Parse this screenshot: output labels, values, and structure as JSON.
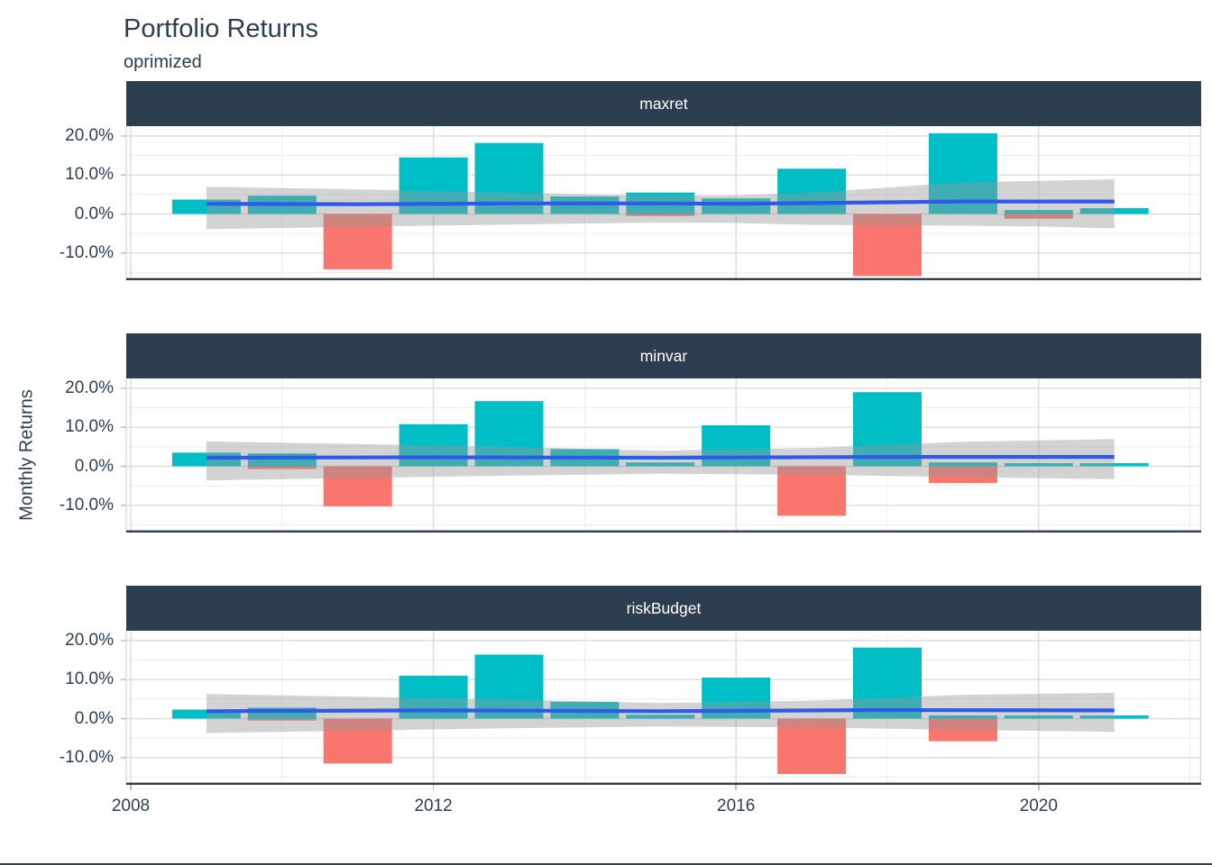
{
  "header": {
    "title": "Portfolio Returns",
    "subtitle": "oprimized"
  },
  "y_axis_title": "Monthly Returns",
  "colors": {
    "positive_bar": "#00BEC6",
    "negative_bar": "#F8766D",
    "mean_line": "#2D5BE8",
    "ribbon": "#969696",
    "ribbon_alpha": 0.42,
    "strip_bg": "#2C3E50",
    "strip_text": "#FFFFFF",
    "text": "#2C3E50",
    "grid_major": "#DCDCDC",
    "grid_minor": "#ECECEC",
    "panel_border": "#D5D5D5",
    "axis_line": "#2C3E50",
    "tick_mark": "#BFBFBF"
  },
  "chart_data": {
    "type": "bar",
    "title": "Portfolio Returns",
    "subtitle": "oprimized",
    "xlabel": "",
    "ylabel": "Monthly Returns",
    "unit": "%",
    "grid": true,
    "legend": "none",
    "xlim": [
      2007.94,
      2022.15
    ],
    "ylim": [
      -17,
      22.5
    ],
    "x_tick_years": [
      2008,
      2012,
      2016,
      2020
    ],
    "x_tick_labels": [
      "2008",
      "2012",
      "2016",
      "2020"
    ],
    "x_minor_years": [
      2010,
      2014,
      2018,
      2022
    ],
    "y_tick_values": [
      20,
      10,
      0,
      -10
    ],
    "y_tick_labels": [
      "20.0%",
      "10.0%",
      "0.0%",
      "-10.0%"
    ],
    "y_minor_values": [
      15,
      5,
      -5,
      -15
    ],
    "years": [
      2009,
      2010,
      2011,
      2012,
      2013,
      2014,
      2015,
      2016,
      2017,
      2018,
      2019,
      2020,
      2021
    ],
    "facets": [
      {
        "label": "maxret",
        "values": [
          3.7,
          4.7,
          -14.2,
          14.5,
          18.2,
          4.5,
          5.5,
          4.0,
          11.6,
          -15.9,
          20.7,
          1.0,
          1.5
        ],
        "companion_values": [
          null,
          null,
          null,
          null,
          null,
          null,
          -0.5,
          null,
          null,
          null,
          null,
          -1.2,
          null
        ],
        "mean_line": [
          [
            2009,
            2.6
          ],
          [
            2011,
            2.5
          ],
          [
            2013,
            2.7
          ],
          [
            2015,
            2.7
          ],
          [
            2016,
            2.6
          ],
          [
            2017,
            2.8
          ],
          [
            2018,
            3.0
          ],
          [
            2019,
            3.2
          ],
          [
            2021,
            3.2
          ]
        ],
        "ribbon": [
          [
            2009,
            7.0,
            -3.9
          ],
          [
            2011,
            6.3,
            -3.3
          ],
          [
            2013,
            5.5,
            -2.7
          ],
          [
            2015,
            4.7,
            -2.2
          ],
          [
            2016,
            4.8,
            -2.3
          ],
          [
            2017,
            5.5,
            -2.8
          ],
          [
            2018,
            6.8,
            -2.9
          ],
          [
            2019,
            8.1,
            -3.0
          ],
          [
            2020,
            8.5,
            -3.2
          ],
          [
            2021,
            8.9,
            -3.7
          ]
        ]
      },
      {
        "label": "minvar",
        "values": [
          3.5,
          3.3,
          -10.3,
          10.8,
          16.7,
          4.4,
          1.0,
          10.5,
          -12.7,
          19.0,
          -4.3,
          0.8,
          0.8
        ],
        "companion_values": [
          null,
          -0.7,
          null,
          null,
          null,
          null,
          null,
          null,
          null,
          null,
          1.0,
          null,
          null
        ],
        "mean_line": [
          [
            2009,
            2.2
          ],
          [
            2012,
            2.3
          ],
          [
            2015,
            2.2
          ],
          [
            2018,
            2.4
          ],
          [
            2021,
            2.4
          ]
        ],
        "ribbon": [
          [
            2009,
            6.4,
            -3.6
          ],
          [
            2011,
            5.7,
            -3.0
          ],
          [
            2013,
            5.0,
            -2.4
          ],
          [
            2015,
            4.0,
            -1.9
          ],
          [
            2017,
            4.7,
            -2.2
          ],
          [
            2019,
            6.3,
            -2.8
          ],
          [
            2021,
            7.0,
            -3.3
          ]
        ]
      },
      {
        "label": "riskBudget",
        "values": [
          2.3,
          2.8,
          -11.5,
          11.0,
          16.4,
          4.3,
          1.0,
          10.5,
          -14.2,
          18.2,
          -5.8,
          0.8,
          0.8
        ],
        "companion_values": [
          null,
          -0.5,
          null,
          null,
          null,
          null,
          null,
          null,
          null,
          null,
          0.8,
          null,
          null
        ],
        "mean_line": [
          [
            2009,
            1.9
          ],
          [
            2012,
            2.1
          ],
          [
            2015,
            1.9
          ],
          [
            2018,
            2.2
          ],
          [
            2021,
            2.1
          ]
        ],
        "ribbon": [
          [
            2009,
            6.3,
            -3.7
          ],
          [
            2011,
            5.6,
            -3.1
          ],
          [
            2013,
            4.9,
            -2.5
          ],
          [
            2015,
            4.0,
            -2.0
          ],
          [
            2017,
            4.6,
            -2.3
          ],
          [
            2019,
            6.1,
            -2.9
          ],
          [
            2021,
            6.6,
            -3.4
          ]
        ]
      }
    ]
  }
}
